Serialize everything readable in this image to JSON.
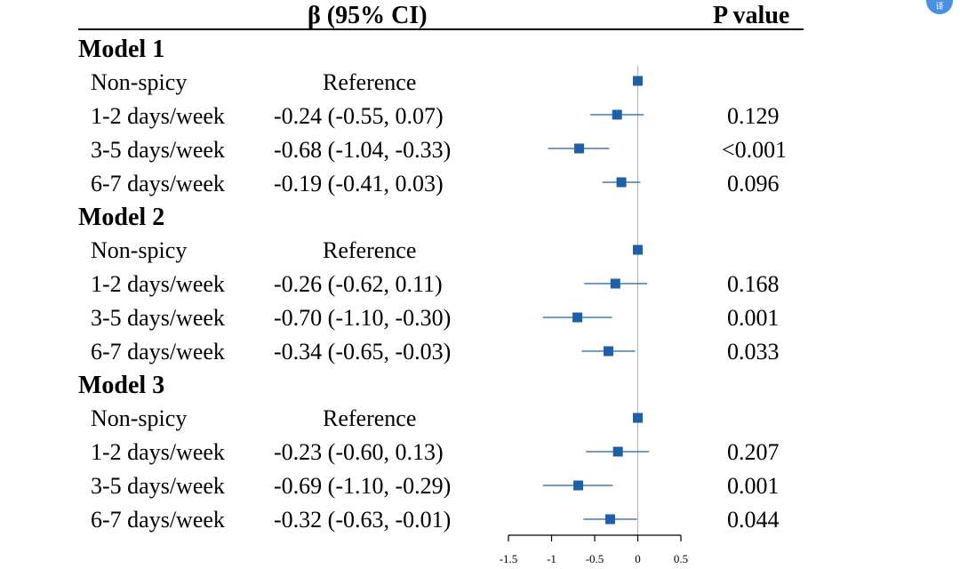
{
  "header": {
    "ci_title": "β (95% CI)",
    "p_title": "P value"
  },
  "models": [
    {
      "title": "Model 1",
      "rows": [
        {
          "label": "Non-spicy",
          "ci_text": "Reference",
          "p": ""
        },
        {
          "label": "1-2 days/week",
          "ci_text": "-0.24 (-0.55, 0.07)",
          "p": "0.129"
        },
        {
          "label": "3-5 days/week",
          "ci_text": "-0.68 (-1.04, -0.33)",
          "p": "<0.001"
        },
        {
          "label": "6-7 days/week",
          "ci_text": "-0.19 (-0.41, 0.03)",
          "p": "0.096"
        }
      ]
    },
    {
      "title": "Model 2",
      "rows": [
        {
          "label": "Non-spicy",
          "ci_text": "Reference",
          "p": ""
        },
        {
          "label": "1-2 days/week",
          "ci_text": "-0.26 (-0.62, 0.11)",
          "p": "0.168"
        },
        {
          "label": "3-5 days/week",
          "ci_text": "-0.70 (-1.10, -0.30)",
          "p": "0.001"
        },
        {
          "label": "6-7 days/week",
          "ci_text": "-0.34 (-0.65, -0.03)",
          "p": "0.033"
        }
      ]
    },
    {
      "title": "Model 3",
      "rows": [
        {
          "label": "Non-spicy",
          "ci_text": "Reference",
          "p": ""
        },
        {
          "label": "1-2 days/week",
          "ci_text": "-0.23 (-0.60, 0.13)",
          "p": "0.207"
        },
        {
          "label": "3-5 days/week",
          "ci_text": "-0.69 (-1.10, -0.29)",
          "p": "0.001"
        },
        {
          "label": "6-7 days/week",
          "ci_text": "-0.32 (-0.63, -0.01)",
          "p": "0.044"
        }
      ]
    }
  ],
  "chart_data": {
    "type": "forest",
    "x_ticks": [
      -1.5,
      -1,
      -0.5,
      0,
      0.5
    ],
    "x_tick_labels": [
      "-1.5",
      "-1",
      "-0.5",
      "0",
      "0.5"
    ],
    "xlim": [
      -1.5,
      0.5
    ],
    "reference_line": 0,
    "series": [
      {
        "name": "Model 1",
        "estimates": [
          0,
          -0.24,
          -0.68,
          -0.19
        ],
        "lower": [
          0,
          -0.55,
          -1.04,
          -0.41
        ],
        "upper": [
          0,
          0.07,
          -0.33,
          0.03
        ]
      },
      {
        "name": "Model 2",
        "estimates": [
          0,
          -0.26,
          -0.7,
          -0.34
        ],
        "lower": [
          0,
          -0.62,
          -1.1,
          -0.65
        ],
        "upper": [
          0,
          0.11,
          -0.3,
          -0.03
        ]
      },
      {
        "name": "Model 3",
        "estimates": [
          0,
          -0.23,
          -0.69,
          -0.32
        ],
        "lower": [
          0,
          -0.6,
          -1.1,
          -0.63
        ],
        "upper": [
          0,
          0.13,
          -0.29,
          -0.01
        ]
      }
    ],
    "colors": {
      "marker": "#1f5fa8",
      "ci_line": "#1f5fa8",
      "ref_line": "#b8b8b8",
      "axis": "#000000"
    }
  },
  "badge": {
    "icon": "translate-icon"
  }
}
